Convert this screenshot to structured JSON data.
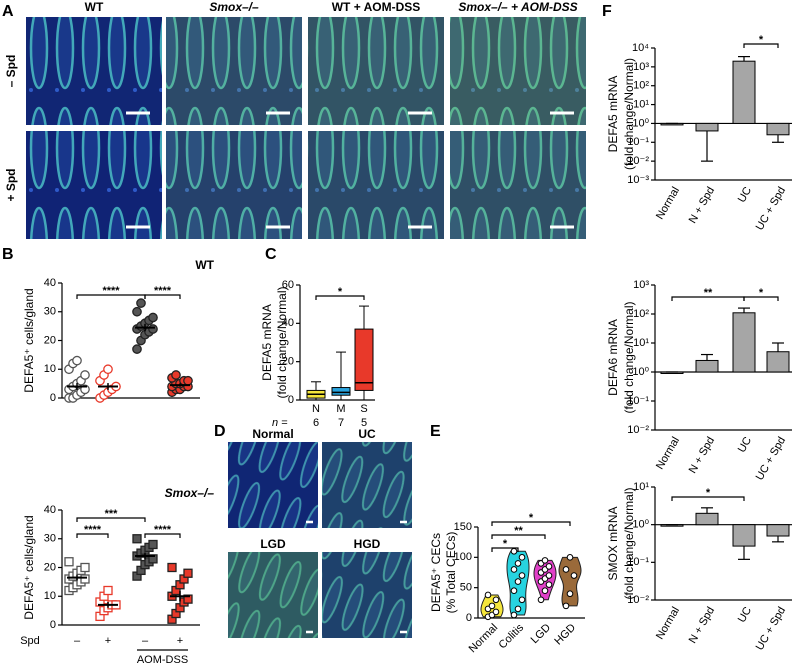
{
  "panel_labels": [
    "A",
    "B",
    "C",
    "D",
    "E",
    "F"
  ],
  "panel_a": {
    "columns": [
      "WT",
      "Smox–/–",
      "WT + AOM-DSS",
      "Smox–/– + AOM-DSS"
    ],
    "rows": [
      "– Spd",
      "+ Spd"
    ]
  },
  "panel_d": {
    "images": [
      "Normal",
      "UC",
      "LGD",
      "HGD"
    ]
  },
  "chart_data": [
    {
      "type": "dot",
      "subtitle": "WT",
      "y_label": "DEFA5⁺ cells/gland",
      "ylim": [
        0,
        40
      ],
      "yticks": [
        0,
        10,
        20,
        30,
        40
      ],
      "groups": [
        {
          "color": "#555555",
          "marker": "circle",
          "filled": false,
          "mean": 4,
          "sem": 1.2,
          "points": [
            0,
            0,
            1,
            2,
            3,
            3,
            4,
            5,
            6,
            8,
            10,
            12,
            13
          ]
        },
        {
          "color": "#e8392a",
          "marker": "circle",
          "filled": false,
          "mean": 4,
          "sem": 1.2,
          "points": [
            0,
            1,
            2,
            3,
            4,
            6,
            8,
            10
          ]
        },
        {
          "color": "#555555",
          "marker": "circle",
          "filled": true,
          "mean": 24.5,
          "sem": 1.3,
          "points": [
            17,
            20,
            22,
            23,
            24,
            24,
            25,
            26,
            27,
            28,
            30,
            33
          ]
        },
        {
          "color": "#e8392a",
          "marker": "circle",
          "filled": true,
          "mean": 4.5,
          "sem": 0.6,
          "points": [
            2,
            3,
            3,
            4,
            4,
            4,
            5,
            5,
            6,
            6,
            7,
            8
          ]
        }
      ],
      "annotations": [
        {
          "text": "****",
          "from": 0,
          "to": 2
        },
        {
          "text": "****",
          "from": 2,
          "to": 3
        }
      ]
    },
    {
      "type": "dot",
      "subtitle": "Smox–/–",
      "y_label": "DEFA5⁺ cells/gland",
      "ylim": [
        0,
        40
      ],
      "yticks": [
        0,
        10,
        20,
        30,
        40
      ],
      "x_row_title": "Spd",
      "categories": [
        "–",
        "+",
        "–",
        "+"
      ],
      "group_label": "AOM-DSS",
      "groups": [
        {
          "color": "#555555",
          "marker": "square",
          "filled": false,
          "mean": 16.5,
          "sem": 1,
          "points": [
            12,
            13,
            14,
            15,
            16,
            16,
            17,
            18,
            19,
            20,
            22
          ]
        },
        {
          "color": "#e8392a",
          "marker": "square",
          "filled": false,
          "mean": 7,
          "sem": 1,
          "points": [
            3,
            5,
            6,
            7,
            7,
            8,
            10,
            12
          ]
        },
        {
          "color": "#555555",
          "marker": "square",
          "filled": true,
          "mean": 24,
          "sem": 1.2,
          "points": [
            17,
            19,
            21,
            22,
            23,
            24,
            25,
            26,
            27,
            28,
            30
          ]
        },
        {
          "color": "#e8392a",
          "marker": "square",
          "filled": true,
          "mean": 10,
          "sem": 1.8,
          "points": [
            2,
            4,
            6,
            8,
            9,
            10,
            12,
            14,
            16,
            18,
            20
          ]
        }
      ],
      "annotations": [
        {
          "text": "***",
          "from": 0,
          "to": 2
        },
        {
          "text": "****",
          "from": 0,
          "to": 1
        },
        {
          "text": "****",
          "from": 2,
          "to": 3
        }
      ]
    },
    {
      "type": "box",
      "y_label": [
        "DEFA5 mRNA",
        "(fold change/Normal)"
      ],
      "ylim": [
        0,
        60
      ],
      "yticks": [
        0,
        20,
        40,
        60
      ],
      "categories": [
        "N",
        "M",
        "S"
      ],
      "n_label": "n =",
      "n_values": [
        6,
        7,
        5
      ],
      "boxes": [
        {
          "color": "#f5e63b",
          "min": 0,
          "q1": 1,
          "median": 3,
          "q3": 5,
          "max": 9.5
        },
        {
          "color": "#29a3dd",
          "min": 0,
          "q1": 2.5,
          "median": 4,
          "q3": 6.5,
          "max": 25
        },
        {
          "color": "#e8392a",
          "min": 0,
          "q1": 5,
          "median": 9,
          "q3": 37,
          "max": 49
        }
      ],
      "annotations": [
        {
          "text": "*",
          "from": 0,
          "to": 2
        }
      ]
    },
    {
      "type": "violin",
      "y_label": [
        "DEFA5⁺ CECs",
        "(% Total CECs)"
      ],
      "ylim": [
        0,
        150
      ],
      "yticks": [
        0,
        50,
        100,
        150
      ],
      "categories": [
        "Normal",
        "Colitis",
        "LGD",
        "HGD"
      ],
      "groups": [
        {
          "color": "#f5e63b",
          "points": [
            2,
            5,
            10,
            15,
            20,
            30,
            38
          ]
        },
        {
          "color": "#27d3e0",
          "points": [
            5,
            15,
            30,
            45,
            60,
            70,
            80,
            90,
            100,
            110
          ]
        },
        {
          "color": "#e040c8",
          "points": [
            30,
            45,
            55,
            60,
            65,
            70,
            75,
            80,
            85,
            90,
            95
          ]
        },
        {
          "color": "#9a6a3a",
          "points": [
            20,
            40,
            70,
            80,
            100
          ]
        }
      ],
      "annotations": [
        {
          "text": "*",
          "from": 0,
          "to": 1
        },
        {
          "text": "**",
          "from": 0,
          "to": 2
        },
        {
          "text": "*",
          "from": 0,
          "to": 3
        }
      ]
    },
    {
      "type": "logbar",
      "y_label": [
        "DEFA5 mRNA",
        "(fold change/Normal)"
      ],
      "log": true,
      "ylim": [
        0.001,
        10000
      ],
      "yticks": [
        {
          "value": 0.001,
          "label": "10⁻³"
        },
        {
          "value": 0.01,
          "label": "10⁻²"
        },
        {
          "value": 0.1,
          "label": "10⁻¹"
        },
        {
          "value": 1,
          "label": "10⁰"
        },
        {
          "value": 10,
          "label": "10¹"
        },
        {
          "value": 100,
          "label": "10²"
        },
        {
          "value": 1000,
          "label": "10³"
        },
        {
          "value": 10000,
          "label": "10⁴"
        }
      ],
      "categories": [
        "Normal",
        "N + Spd",
        "UC",
        "UC + Spd"
      ],
      "color": "#a6a6a6",
      "values": [
        1,
        0.4,
        2000,
        0.25
      ],
      "errors": [
        0,
        0.39,
        1500,
        0.15
      ],
      "annotations": [
        {
          "text": "*",
          "from": 2,
          "to": 3
        }
      ]
    },
    {
      "type": "logbar",
      "y_label": [
        "DEFA6 mRNA",
        "(fold change/Normal)"
      ],
      "log": true,
      "ylim": [
        0.01,
        1000
      ],
      "yticks": [
        {
          "value": 0.01,
          "label": "10⁻²"
        },
        {
          "value": 0.1,
          "label": "10⁻¹"
        },
        {
          "value": 1,
          "label": "10⁰"
        },
        {
          "value": 10,
          "label": "10¹"
        },
        {
          "value": 100,
          "label": "10²"
        },
        {
          "value": 1000,
          "label": "10³"
        }
      ],
      "categories": [
        "Normal",
        "N + Spd",
        "UC",
        "UC + Spd"
      ],
      "color": "#a6a6a6",
      "values": [
        1,
        2.5,
        110,
        5
      ],
      "errors": [
        0,
        1.5,
        50,
        5
      ],
      "annotations": [
        {
          "text": "**",
          "from": 0,
          "to": 2
        },
        {
          "text": "*",
          "from": 2,
          "to": 3
        }
      ]
    },
    {
      "type": "logbar",
      "y_label": [
        "SMOX mRNA",
        "(fold change/Normal)"
      ],
      "log": true,
      "ylim": [
        0.01,
        10
      ],
      "yticks": [
        {
          "value": 0.01,
          "label": "10⁻²"
        },
        {
          "value": 0.1,
          "label": "10⁻¹"
        },
        {
          "value": 1,
          "label": "10⁰"
        },
        {
          "value": 10,
          "label": "10¹"
        }
      ],
      "categories": [
        "Normal",
        "N + Spd",
        "UC",
        "UC + Spd"
      ],
      "color": "#a6a6a6",
      "values": [
        1,
        2,
        0.27,
        0.5
      ],
      "errors": [
        0,
        0.8,
        0.15,
        0.15
      ],
      "annotations": [
        {
          "text": "*",
          "from": 0,
          "to": 2
        }
      ]
    }
  ]
}
